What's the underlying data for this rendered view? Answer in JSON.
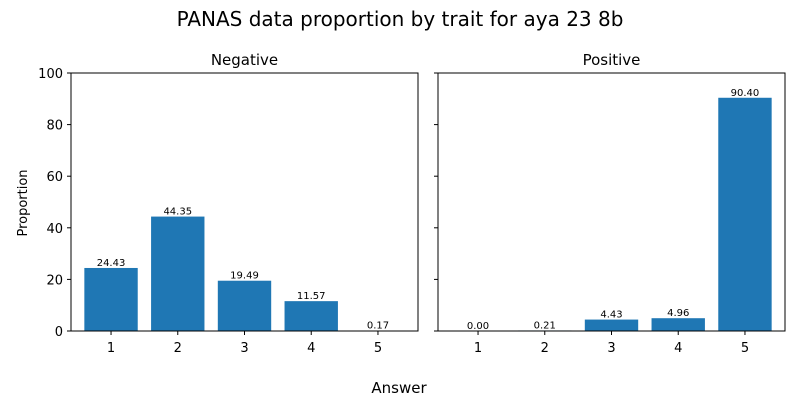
{
  "figure": {
    "title": "PANAS data proportion by trait for aya 23 8b",
    "xlabel": "Answer",
    "ylabel": "Proportion"
  },
  "colors": {
    "bar": "#1f77b4",
    "axis": "#000000",
    "background": "#ffffff"
  },
  "chart_data": [
    {
      "type": "bar",
      "title": "Negative",
      "categories": [
        "1",
        "2",
        "3",
        "4",
        "5"
      ],
      "values": [
        24.43,
        44.35,
        19.49,
        11.57,
        0.17
      ],
      "value_labels": [
        "24.43",
        "44.35",
        "19.49",
        "11.57",
        "0.17"
      ],
      "xlabel": "Answer",
      "ylabel": "Proportion",
      "ylim": [
        0,
        100
      ],
      "yticks": [
        "0",
        "20",
        "40",
        "60",
        "80",
        "100"
      ],
      "grid": false
    },
    {
      "type": "bar",
      "title": "Positive",
      "categories": [
        "1",
        "2",
        "3",
        "4",
        "5"
      ],
      "values": [
        0.0,
        0.21,
        4.43,
        4.96,
        90.4
      ],
      "value_labels": [
        "0.00",
        "0.21",
        "4.43",
        "4.96",
        "90.40"
      ],
      "xlabel": "Answer",
      "ylabel": "",
      "ylim": [
        0,
        100
      ],
      "yticks": [],
      "grid": false
    }
  ]
}
